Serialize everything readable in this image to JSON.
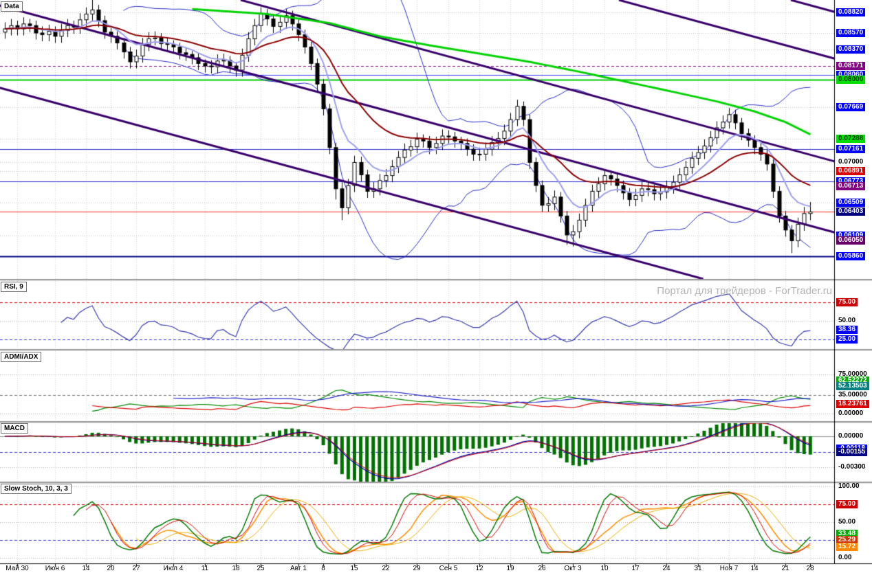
{
  "watermark": "Портал для трейдеров - ForTrader.ru",
  "panels": [
    {
      "id": "main",
      "header": "Data"
    },
    {
      "id": "rsi",
      "header": "RSI, 9"
    },
    {
      "id": "adx",
      "header": "ADMI/ADX"
    },
    {
      "id": "macd",
      "header": "MACD"
    },
    {
      "id": "stoch",
      "header": "Slow Stoch, 10, 3, 3"
    }
  ],
  "chart_data": {
    "type": "candlestick",
    "price_axis_range": {
      "top": 0.0897,
      "bottom": 0.056
    },
    "x_dates": [
      [
        "Май 30",
        2
      ],
      [
        "Июн 6",
        8
      ],
      [
        "14",
        13
      ],
      [
        "20",
        17
      ],
      [
        "27",
        21
      ],
      [
        "Июл 4",
        27
      ],
      [
        "11",
        32
      ],
      [
        "18",
        37
      ],
      [
        "25",
        41
      ],
      [
        "Авг 1",
        47
      ],
      [
        "8",
        51
      ],
      [
        "15",
        56
      ],
      [
        "22",
        61
      ],
      [
        "29",
        66
      ],
      [
        "Сен 5",
        71
      ],
      [
        "12",
        76
      ],
      [
        "19",
        81
      ],
      [
        "26",
        86
      ],
      [
        "Окт 3",
        91
      ],
      [
        "10",
        96
      ],
      [
        "17",
        101
      ],
      [
        "24",
        106
      ],
      [
        "31",
        111
      ],
      [
        "Ноя 7",
        116
      ],
      [
        "14",
        120
      ],
      [
        "21",
        125
      ],
      [
        "28",
        129
      ]
    ],
    "candles": [
      [
        0.0858,
        0.087,
        0.085,
        0.0862
      ],
      [
        0.0862,
        0.0874,
        0.0854,
        0.0866
      ],
      [
        0.0866,
        0.0872,
        0.0854,
        0.0862
      ],
      [
        0.0862,
        0.0876,
        0.0854,
        0.0868
      ],
      [
        0.0868,
        0.0874,
        0.0858,
        0.0866
      ],
      [
        0.0866,
        0.0872,
        0.0849,
        0.0857
      ],
      [
        0.0857,
        0.0865,
        0.0847,
        0.0855
      ],
      [
        0.0855,
        0.0867,
        0.0847,
        0.0859
      ],
      [
        0.0859,
        0.0865,
        0.0845,
        0.0853
      ],
      [
        0.0853,
        0.0868,
        0.0845,
        0.086
      ],
      [
        0.086,
        0.0874,
        0.0852,
        0.0866
      ],
      [
        0.0866,
        0.0872,
        0.0856,
        0.0864
      ],
      [
        0.0864,
        0.0881,
        0.0856,
        0.0873
      ],
      [
        0.0873,
        0.0888,
        0.0865,
        0.088
      ],
      [
        0.088,
        0.0897,
        0.0872,
        0.0885
      ],
      [
        0.0885,
        0.0891,
        0.0864,
        0.0872
      ],
      [
        0.0872,
        0.0878,
        0.085,
        0.0858
      ],
      [
        0.0858,
        0.0863,
        0.0845,
        0.0853
      ],
      [
        0.0853,
        0.0859,
        0.0837,
        0.0845
      ],
      [
        0.0845,
        0.0851,
        0.0826,
        0.0834
      ],
      [
        0.0834,
        0.084,
        0.0814,
        0.0822
      ],
      [
        0.0822,
        0.0837,
        0.0814,
        0.0829
      ],
      [
        0.0829,
        0.0851,
        0.0821,
        0.0843
      ],
      [
        0.0843,
        0.0858,
        0.0835,
        0.085
      ],
      [
        0.085,
        0.0859,
        0.0842,
        0.0851
      ],
      [
        0.0851,
        0.0857,
        0.0836,
        0.0844
      ],
      [
        0.0844,
        0.0851,
        0.0835,
        0.0843
      ],
      [
        0.0843,
        0.0848,
        0.0832,
        0.084
      ],
      [
        0.084,
        0.0845,
        0.0825,
        0.0833
      ],
      [
        0.0833,
        0.0839,
        0.0823,
        0.0831
      ],
      [
        0.0831,
        0.0835,
        0.0819,
        0.0827
      ],
      [
        0.0827,
        0.0832,
        0.0812,
        0.082
      ],
      [
        0.082,
        0.0825,
        0.0809,
        0.0817
      ],
      [
        0.0817,
        0.0824,
        0.0808,
        0.0816
      ],
      [
        0.0816,
        0.0831,
        0.0808,
        0.0823
      ],
      [
        0.0823,
        0.0832,
        0.0816,
        0.0824
      ],
      [
        0.0824,
        0.0829,
        0.0809,
        0.0817
      ],
      [
        0.0817,
        0.0822,
        0.0804,
        0.0812
      ],
      [
        0.0812,
        0.0838,
        0.0804,
        0.083
      ],
      [
        0.083,
        0.0858,
        0.0822,
        0.085
      ],
      [
        0.085,
        0.0874,
        0.0842,
        0.0866
      ],
      [
        0.0866,
        0.0888,
        0.0858,
        0.088
      ],
      [
        0.088,
        0.0886,
        0.0866,
        0.0874
      ],
      [
        0.0874,
        0.088,
        0.0857,
        0.0865
      ],
      [
        0.0865,
        0.0878,
        0.0857,
        0.087
      ],
      [
        0.087,
        0.0886,
        0.0862,
        0.0878
      ],
      [
        0.0878,
        0.0884,
        0.086,
        0.0868
      ],
      [
        0.0868,
        0.0874,
        0.0847,
        0.0855
      ],
      [
        0.0855,
        0.0861,
        0.0832,
        0.084
      ],
      [
        0.084,
        0.0846,
        0.0812,
        0.082
      ],
      [
        0.082,
        0.0826,
        0.0787,
        0.0795
      ],
      [
        0.0795,
        0.0801,
        0.0757,
        0.0765
      ],
      [
        0.0765,
        0.0771,
        0.071,
        0.0718
      ],
      [
        0.0718,
        0.0724,
        0.0655,
        0.0668
      ],
      [
        0.0668,
        0.0676,
        0.063,
        0.0645
      ],
      [
        0.0645,
        0.068,
        0.0637,
        0.0672
      ],
      [
        0.0672,
        0.0708,
        0.0664,
        0.07
      ],
      [
        0.07,
        0.0707,
        0.0677,
        0.0685
      ],
      [
        0.0685,
        0.0691,
        0.0657,
        0.0665
      ],
      [
        0.0665,
        0.0676,
        0.0657,
        0.0668
      ],
      [
        0.0668,
        0.0686,
        0.066,
        0.0678
      ],
      [
        0.0678,
        0.0692,
        0.067,
        0.0684
      ],
      [
        0.0684,
        0.0703,
        0.0676,
        0.0695
      ],
      [
        0.0695,
        0.0714,
        0.0687,
        0.0706
      ],
      [
        0.0706,
        0.0723,
        0.0698,
        0.0715
      ],
      [
        0.0715,
        0.0727,
        0.0707,
        0.0719
      ],
      [
        0.0719,
        0.0736,
        0.0711,
        0.0728
      ],
      [
        0.0728,
        0.0734,
        0.0718,
        0.0726
      ],
      [
        0.0726,
        0.0732,
        0.071,
        0.0718
      ],
      [
        0.0718,
        0.0731,
        0.071,
        0.0723
      ],
      [
        0.0723,
        0.074,
        0.0715,
        0.0732
      ],
      [
        0.0732,
        0.0739,
        0.0723,
        0.0731
      ],
      [
        0.0731,
        0.0737,
        0.0718,
        0.0726
      ],
      [
        0.0726,
        0.0731,
        0.0715,
        0.0723
      ],
      [
        0.0723,
        0.0729,
        0.0708,
        0.0716
      ],
      [
        0.0716,
        0.0722,
        0.0702,
        0.071
      ],
      [
        0.071,
        0.0718,
        0.0702,
        0.071
      ],
      [
        0.071,
        0.0724,
        0.0702,
        0.0716
      ],
      [
        0.0716,
        0.0732,
        0.0708,
        0.0724
      ],
      [
        0.0724,
        0.0737,
        0.0716,
        0.0729
      ],
      [
        0.0729,
        0.0746,
        0.0721,
        0.0738
      ],
      [
        0.0738,
        0.076,
        0.073,
        0.0752
      ],
      [
        0.0752,
        0.0776,
        0.0744,
        0.0768
      ],
      [
        0.0768,
        0.0774,
        0.0744,
        0.0752
      ],
      [
        0.0752,
        0.0758,
        0.0692,
        0.07
      ],
      [
        0.07,
        0.0706,
        0.0664,
        0.0672
      ],
      [
        0.0672,
        0.0678,
        0.064,
        0.0648
      ],
      [
        0.0648,
        0.0658,
        0.064,
        0.065
      ],
      [
        0.065,
        0.0666,
        0.0642,
        0.0658
      ],
      [
        0.0658,
        0.0664,
        0.0627,
        0.0635
      ],
      [
        0.0635,
        0.0641,
        0.06,
        0.0612
      ],
      [
        0.0612,
        0.0624,
        0.0598,
        0.0616
      ],
      [
        0.0616,
        0.0638,
        0.0608,
        0.063
      ],
      [
        0.063,
        0.0656,
        0.0622,
        0.0648
      ],
      [
        0.0648,
        0.0673,
        0.064,
        0.0665
      ],
      [
        0.0665,
        0.0682,
        0.0657,
        0.0674
      ],
      [
        0.0674,
        0.0692,
        0.0666,
        0.0684
      ],
      [
        0.0684,
        0.069,
        0.0672,
        0.068
      ],
      [
        0.068,
        0.0686,
        0.0664,
        0.0672
      ],
      [
        0.0672,
        0.0678,
        0.0655,
        0.0663
      ],
      [
        0.0663,
        0.0669,
        0.0647,
        0.0655
      ],
      [
        0.0655,
        0.0668,
        0.0647,
        0.066
      ],
      [
        0.066,
        0.0676,
        0.0652,
        0.0668
      ],
      [
        0.0668,
        0.0675,
        0.0659,
        0.0667
      ],
      [
        0.0667,
        0.0673,
        0.0654,
        0.0662
      ],
      [
        0.0662,
        0.0672,
        0.0654,
        0.0664
      ],
      [
        0.0664,
        0.0678,
        0.0656,
        0.067
      ],
      [
        0.067,
        0.0684,
        0.0662,
        0.0676
      ],
      [
        0.0676,
        0.0693,
        0.0668,
        0.0685
      ],
      [
        0.0685,
        0.0702,
        0.0677,
        0.0694
      ],
      [
        0.0694,
        0.0713,
        0.0686,
        0.0705
      ],
      [
        0.0705,
        0.072,
        0.0697,
        0.0712
      ],
      [
        0.0712,
        0.0728,
        0.0704,
        0.072
      ],
      [
        0.072,
        0.0738,
        0.0712,
        0.073
      ],
      [
        0.073,
        0.075,
        0.0722,
        0.0742
      ],
      [
        0.0742,
        0.0757,
        0.0734,
        0.0749
      ],
      [
        0.0749,
        0.0766,
        0.0741,
        0.0758
      ],
      [
        0.0758,
        0.0764,
        0.074,
        0.0748
      ],
      [
        0.0748,
        0.0754,
        0.0727,
        0.0735
      ],
      [
        0.0735,
        0.0741,
        0.0719,
        0.0727
      ],
      [
        0.0727,
        0.0733,
        0.071,
        0.0718
      ],
      [
        0.0718,
        0.0724,
        0.0702,
        0.071
      ],
      [
        0.071,
        0.0716,
        0.069,
        0.0698
      ],
      [
        0.0698,
        0.0704,
        0.0657,
        0.0665
      ],
      [
        0.0665,
        0.0671,
        0.0627,
        0.0635
      ],
      [
        0.0635,
        0.0641,
        0.061,
        0.0618
      ],
      [
        0.0618,
        0.0624,
        0.059,
        0.0605
      ],
      [
        0.0605,
        0.0633,
        0.0597,
        0.0625
      ],
      [
        0.0625,
        0.0646,
        0.0617,
        0.0638
      ],
      [
        0.0638,
        0.0652,
        0.063,
        0.064
      ]
    ],
    "main_levels": [
      {
        "v": 0.08171,
        "s": "dash",
        "c": "#800080",
        "w": 1
      },
      {
        "v": 0.0806,
        "s": "solid",
        "c": "#3030ff",
        "w": 1
      },
      {
        "v": 0.08,
        "s": "solid",
        "c": "#00cc00",
        "w": 2
      },
      {
        "v": 0.07161,
        "s": "solid",
        "c": "#2828c8",
        "w": 1
      },
      {
        "v": 0.06773,
        "s": "solid",
        "c": "#2828c8",
        "w": 1
      },
      {
        "v": 0.06403,
        "s": "solid",
        "c": "#ff2020",
        "w": 1
      },
      {
        "v": 0.0586,
        "s": "solid",
        "c": "#000080",
        "w": 2
      }
    ],
    "grid_levels": [
      0.0882,
      0.0857,
      0.0837,
      0.07669,
      0.07288,
      0.07,
      0.06891,
      0.06509,
      0.06109
    ],
    "channel_slope": 0.272,
    "channel_x0": [
      -470,
      -30,
      350,
      900,
      1150
    ],
    "green_ma_anchors": [
      [
        30,
        0.0886
      ],
      [
        42,
        0.088
      ],
      [
        52,
        0.0869
      ],
      [
        60,
        0.0853
      ],
      [
        68,
        0.0842
      ],
      [
        76,
        0.0832
      ],
      [
        84,
        0.0822
      ],
      [
        92,
        0.081
      ],
      [
        100,
        0.0797
      ],
      [
        108,
        0.0784
      ],
      [
        114,
        0.0774
      ],
      [
        120,
        0.0762
      ],
      [
        125,
        0.0749
      ],
      [
        129,
        0.0734
      ]
    ],
    "axis_labels": {
      "main": [
        {
          "text": "0.08820",
          "bg": "#0000ff"
        },
        {
          "text": "0.08570",
          "bg": "#0000ff"
        },
        {
          "text": "0.08370",
          "bg": "#0000ff"
        },
        {
          "text": "0.08171",
          "bg": "#800080"
        },
        {
          "text": "0.08060",
          "bg": "#0000ff"
        },
        {
          "text": "0.08000",
          "bg": "#00dd00",
          "fg": "#003300"
        },
        {
          "text": "0.07669",
          "bg": "#0000ff"
        },
        {
          "text": "0.07288",
          "bg": "#00dd00",
          "fg": "#003300"
        },
        {
          "text": "0.07161",
          "bg": "#0000ff"
        },
        {
          "text": "0.07000"
        },
        {
          "text": "0.06891",
          "bg": "#dd0000"
        },
        {
          "text": "0.06773",
          "bg": "#0000ff"
        },
        {
          "text": "0.06713",
          "bg": "#800080"
        },
        {
          "text": "0.06509",
          "bg": "#0000ff"
        },
        {
          "text": "0.06403",
          "bg": "#000080"
        },
        {
          "text": "0.06109",
          "bg": "#0000ff"
        },
        {
          "text": "0.06050",
          "bg": "#660066"
        },
        {
          "text": "0.05860",
          "bg": "#0000ff"
        }
      ],
      "rsi": [
        {
          "text": "75.00",
          "bg": "#cc0000"
        },
        {
          "text": "50.00"
        },
        {
          "text": "38.36",
          "bg": "#0000ff"
        },
        {
          "text": "25.00",
          "bg": "#0000ff"
        }
      ],
      "adx": [
        {
          "text": "75.00000"
        },
        {
          "text": "62.52272",
          "bg": "#00aa00"
        },
        {
          "text": "52.13503",
          "bg": "#008080"
        },
        {
          "text": "35.00000"
        },
        {
          "text": "18.23761",
          "bg": "#dd0000"
        },
        {
          "text": "0.00000"
        }
      ],
      "macd": [
        {
          "text": "0.00000"
        },
        {
          "text": "-0.00118",
          "bg": "#0000ff"
        },
        {
          "text": "-0.00155",
          "bg": "#000080"
        },
        {
          "text": "-0.00300"
        }
      ],
      "stoch": [
        {
          "text": "100.00"
        },
        {
          "text": "75.00",
          "bg": "#cc0000"
        },
        {
          "text": "50.00"
        },
        {
          "text": "33.48",
          "bg": "#00aa00"
        },
        {
          "text": "25.29",
          "bg": "#cc3300"
        },
        {
          "text": "15.72",
          "bg": "#ff8800"
        },
        {
          "text": "0.00"
        }
      ]
    },
    "sub_levels": {
      "rsi": [
        {
          "v": 75,
          "s": "dash",
          "c": "#cc0000"
        },
        {
          "v": 50,
          "s": "dot",
          "c": "#b0b0b0"
        },
        {
          "v": 25,
          "s": "dash",
          "c": "#3a3acc"
        }
      ],
      "adx": [
        {
          "v": 75,
          "s": "dot",
          "c": "#b0b0b0"
        },
        {
          "v": 35,
          "s": "dash",
          "c": "#707070"
        },
        {
          "v": 0,
          "s": "dot",
          "c": "#b0b0b0"
        }
      ],
      "macd": [
        {
          "v": 0,
          "s": "solid",
          "c": "#909090"
        },
        {
          "v": -0.00155,
          "s": "dash",
          "c": "#3a3acc"
        },
        {
          "v": -0.003,
          "s": "dot",
          "c": "#b0b0b0"
        }
      ],
      "stoch": [
        {
          "v": 100,
          "s": "dot",
          "c": "#b0b0b0"
        },
        {
          "v": 75,
          "s": "dash",
          "c": "#cc0000"
        },
        {
          "v": 50,
          "s": "dot",
          "c": "#b0b0b0"
        },
        {
          "v": 25,
          "s": "dash",
          "c": "#3a3acc"
        },
        {
          "v": 0,
          "s": "dot",
          "c": "#b0b0b0"
        }
      ]
    },
    "indicators": {
      "rsi": {
        "period": 9,
        "color": "#3838b0"
      },
      "adx": {
        "period": 14,
        "plus_di_color": "#dd0000",
        "minus_di_color": "#008800",
        "adx_color": "#2020cc"
      },
      "macd": {
        "fast": 12,
        "slow": 26,
        "signal": 9,
        "hist_color": "#007000",
        "macd_color": "#0000aa",
        "signal_color": "#cc0000"
      },
      "stoch": {
        "k": 10,
        "slowing": 3,
        "d": 3,
        "k_color": "#007a00",
        "d_color": "#cc0000",
        "k2_color": "#ff8c00",
        "d2_color": "#e8b000"
      },
      "overlays": {
        "bollinger_period": 20,
        "bollinger_color": "#2a2ac8",
        "ema_fast": 8,
        "ema_fast_color": "#9e9ef0",
        "ema_slow": 21,
        "ema_slow_color": "#8b0000",
        "long_ma_color": "#00d200",
        "channel_color": "#38006b"
      }
    }
  }
}
